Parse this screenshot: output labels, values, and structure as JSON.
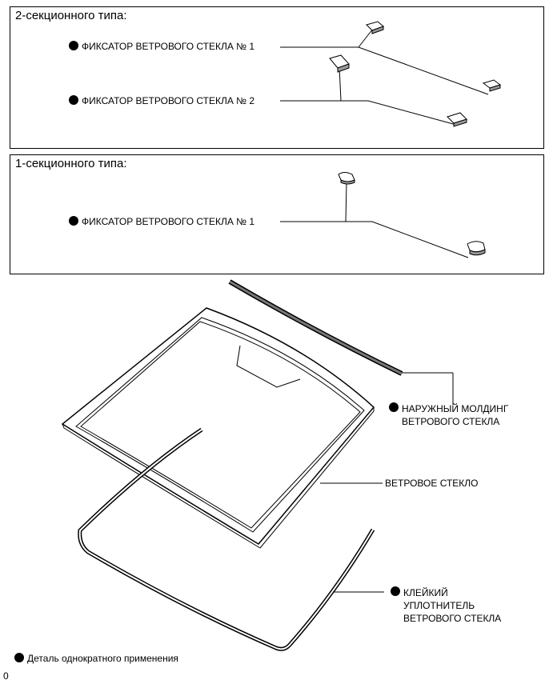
{
  "panel_two_section": {
    "title": "2-секционного типа:",
    "retainer1_label": "ФИКСАТОР ВЕТРОВОГО СТЕКЛА № 1",
    "retainer2_label": "ФИКСАТОР ВЕТРОВОГО СТЕКЛА № 2"
  },
  "panel_one_section": {
    "title": "1-секционного типа:",
    "retainer1_label": "ФИКСАТОР ВЕТРОВОГО СТЕКЛА № 1"
  },
  "main": {
    "outer_molding_line1": "НАРУЖНЫЙ МОЛДИНГ",
    "outer_molding_line2": "ВЕТРОВОГО СТЕКЛА",
    "windshield_label": "ВЕТРОВОЕ СТЕКЛО",
    "dam_line1": "КЛЕЙКИЙ",
    "dam_line2": "УПЛОТНИТЕЛЬ",
    "dam_line3": "ВЕТРОВОГО СТЕКЛА"
  },
  "legend": {
    "non_reusable": "Деталь однократного применения"
  },
  "footer_code": "0"
}
